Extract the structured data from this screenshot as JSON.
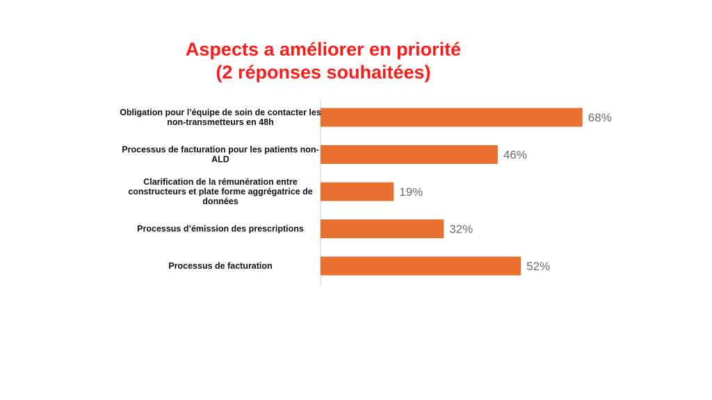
{
  "colors": {
    "title": "#ff1a1a",
    "bar": "#ea7030",
    "axis": "#cfcfcf",
    "value_label": "#6b6b6b"
  },
  "chart_data": {
    "type": "bar",
    "orientation": "horizontal",
    "title_line1": "Aspects a améliorer en priorité",
    "title_line2": "(2 réponses souhaitées)",
    "categories": [
      [
        "Obligation pour l’équipe de soin de contacter les",
        "non-transmetteurs en 48h"
      ],
      [
        "Processus de facturation pour les patients non-",
        "ALD"
      ],
      [
        "Clarification de la rémunération entre",
        "constructeurs et plate forme aggrégatrice de",
        "données"
      ],
      [
        "Processus d’émission des prescriptions"
      ],
      [
        "Processus de facturation"
      ]
    ],
    "values": [
      68,
      46,
      19,
      32,
      52
    ],
    "value_labels": [
      "68%",
      "46%",
      "19%",
      "32%",
      "52%"
    ],
    "xlim": [
      0,
      100
    ],
    "grid": false,
    "legend": "none"
  }
}
